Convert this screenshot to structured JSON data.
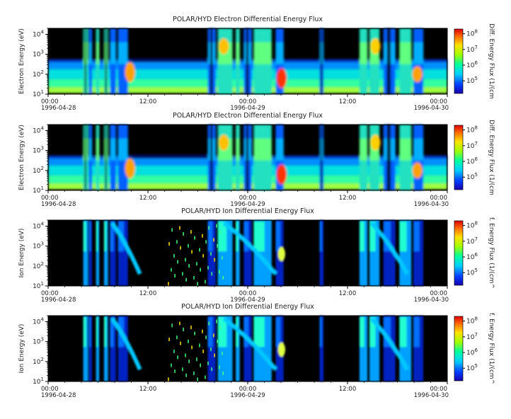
{
  "chart_data": [
    {
      "type": "heatmap",
      "title": "POLAR/HYD  Electron Differential Energy Flux",
      "ylabel": "Electron Energy (eV)",
      "colorbar_label": "Diff. Energy Flux (1/(cm",
      "ylim": [
        10,
        20000
      ],
      "yscale": "log",
      "y_ticks": [
        {
          "b": "10",
          "e": "1"
        },
        {
          "b": "10",
          "e": "2"
        },
        {
          "b": "10",
          "e": "3"
        },
        {
          "b": "10",
          "e": "4"
        }
      ],
      "x_ticks": [
        {
          "t": "00:00",
          "d": "1996-04-28"
        },
        {
          "t": "12:00",
          "d": ""
        },
        {
          "t": "00:00",
          "d": "1996-04-29"
        },
        {
          "t": "12:00",
          "d": ""
        },
        {
          "t": "00:00",
          "d": "1996-04-30"
        }
      ],
      "colorbar_ticks": [
        {
          "b": "10",
          "e": "5"
        },
        {
          "b": "10",
          "e": "6"
        },
        {
          "b": "10",
          "e": "7"
        },
        {
          "b": "10",
          "e": "8"
        }
      ],
      "species": "electron"
    },
    {
      "type": "heatmap",
      "title": "POLAR/HYD  Electron Differential Energy Flux",
      "ylabel": "Electron Energy (eV)",
      "colorbar_label": "Diff. Energy Flux (1/(cm",
      "ylim": [
        10,
        20000
      ],
      "yscale": "log",
      "y_ticks": [
        {
          "b": "10",
          "e": "1"
        },
        {
          "b": "10",
          "e": "2"
        },
        {
          "b": "10",
          "e": "3"
        },
        {
          "b": "10",
          "e": "4"
        }
      ],
      "x_ticks": [
        {
          "t": "00:00",
          "d": "1996-04-28"
        },
        {
          "t": "12:00",
          "d": ""
        },
        {
          "t": "00:00",
          "d": "1996-04-29"
        },
        {
          "t": "12:00",
          "d": ""
        },
        {
          "t": "00:00",
          "d": "1996-04-30"
        }
      ],
      "colorbar_ticks": [
        {
          "b": "10",
          "e": "5"
        },
        {
          "b": "10",
          "e": "6"
        },
        {
          "b": "10",
          "e": "7"
        },
        {
          "b": "10",
          "e": "8"
        }
      ],
      "species": "electron"
    },
    {
      "type": "heatmap",
      "title": "POLAR/HYD  Ion Differential Energy Flux",
      "ylabel": "Ion Energy (eV)",
      "colorbar_label": "f. Energy Flux (1/(cm^",
      "ylim": [
        10,
        20000
      ],
      "yscale": "log",
      "y_ticks": [
        {
          "b": "10",
          "e": "1"
        },
        {
          "b": "10",
          "e": "2"
        },
        {
          "b": "10",
          "e": "3"
        },
        {
          "b": "10",
          "e": "4"
        }
      ],
      "x_ticks": [
        {
          "t": "00:00",
          "d": "1996-04-28"
        },
        {
          "t": "12:00",
          "d": ""
        },
        {
          "t": "00:00",
          "d": "1996-04-29"
        },
        {
          "t": "12:00",
          "d": ""
        },
        {
          "t": "00:00",
          "d": "1996-04-30"
        }
      ],
      "colorbar_ticks": [
        {
          "b": "10",
          "e": "5"
        },
        {
          "b": "10",
          "e": "6"
        },
        {
          "b": "10",
          "e": "7"
        },
        {
          "b": "10",
          "e": "8"
        }
      ],
      "species": "ion"
    },
    {
      "type": "heatmap",
      "title": "POLAR/HYD  Ion Differential Energy Flux",
      "ylabel": "Ion Energy (eV)",
      "colorbar_label": "f. Energy Flux (1/(cm^",
      "ylim": [
        10,
        20000
      ],
      "yscale": "log",
      "y_ticks": [
        {
          "b": "10",
          "e": "1"
        },
        {
          "b": "10",
          "e": "2"
        },
        {
          "b": "10",
          "e": "3"
        },
        {
          "b": "10",
          "e": "4"
        }
      ],
      "x_ticks": [
        {
          "t": "00:00",
          "d": "1996-04-28"
        },
        {
          "t": "12:00",
          "d": ""
        },
        {
          "t": "00:00",
          "d": "1996-04-29"
        },
        {
          "t": "12:00",
          "d": ""
        },
        {
          "t": "00:00",
          "d": "1996-04-30"
        }
      ],
      "colorbar_ticks": [
        {
          "b": "10",
          "e": "5"
        },
        {
          "b": "10",
          "e": "6"
        },
        {
          "b": "10",
          "e": "7"
        },
        {
          "b": "10",
          "e": "8"
        }
      ],
      "species": "ion"
    }
  ],
  "colors": {
    "background": "#000000",
    "colormap": [
      "#1a00b0",
      "#0040ff",
      "#00d0ff",
      "#00ffa0",
      "#a0ff00",
      "#ffe000",
      "#ff7000",
      "#e00000"
    ]
  }
}
